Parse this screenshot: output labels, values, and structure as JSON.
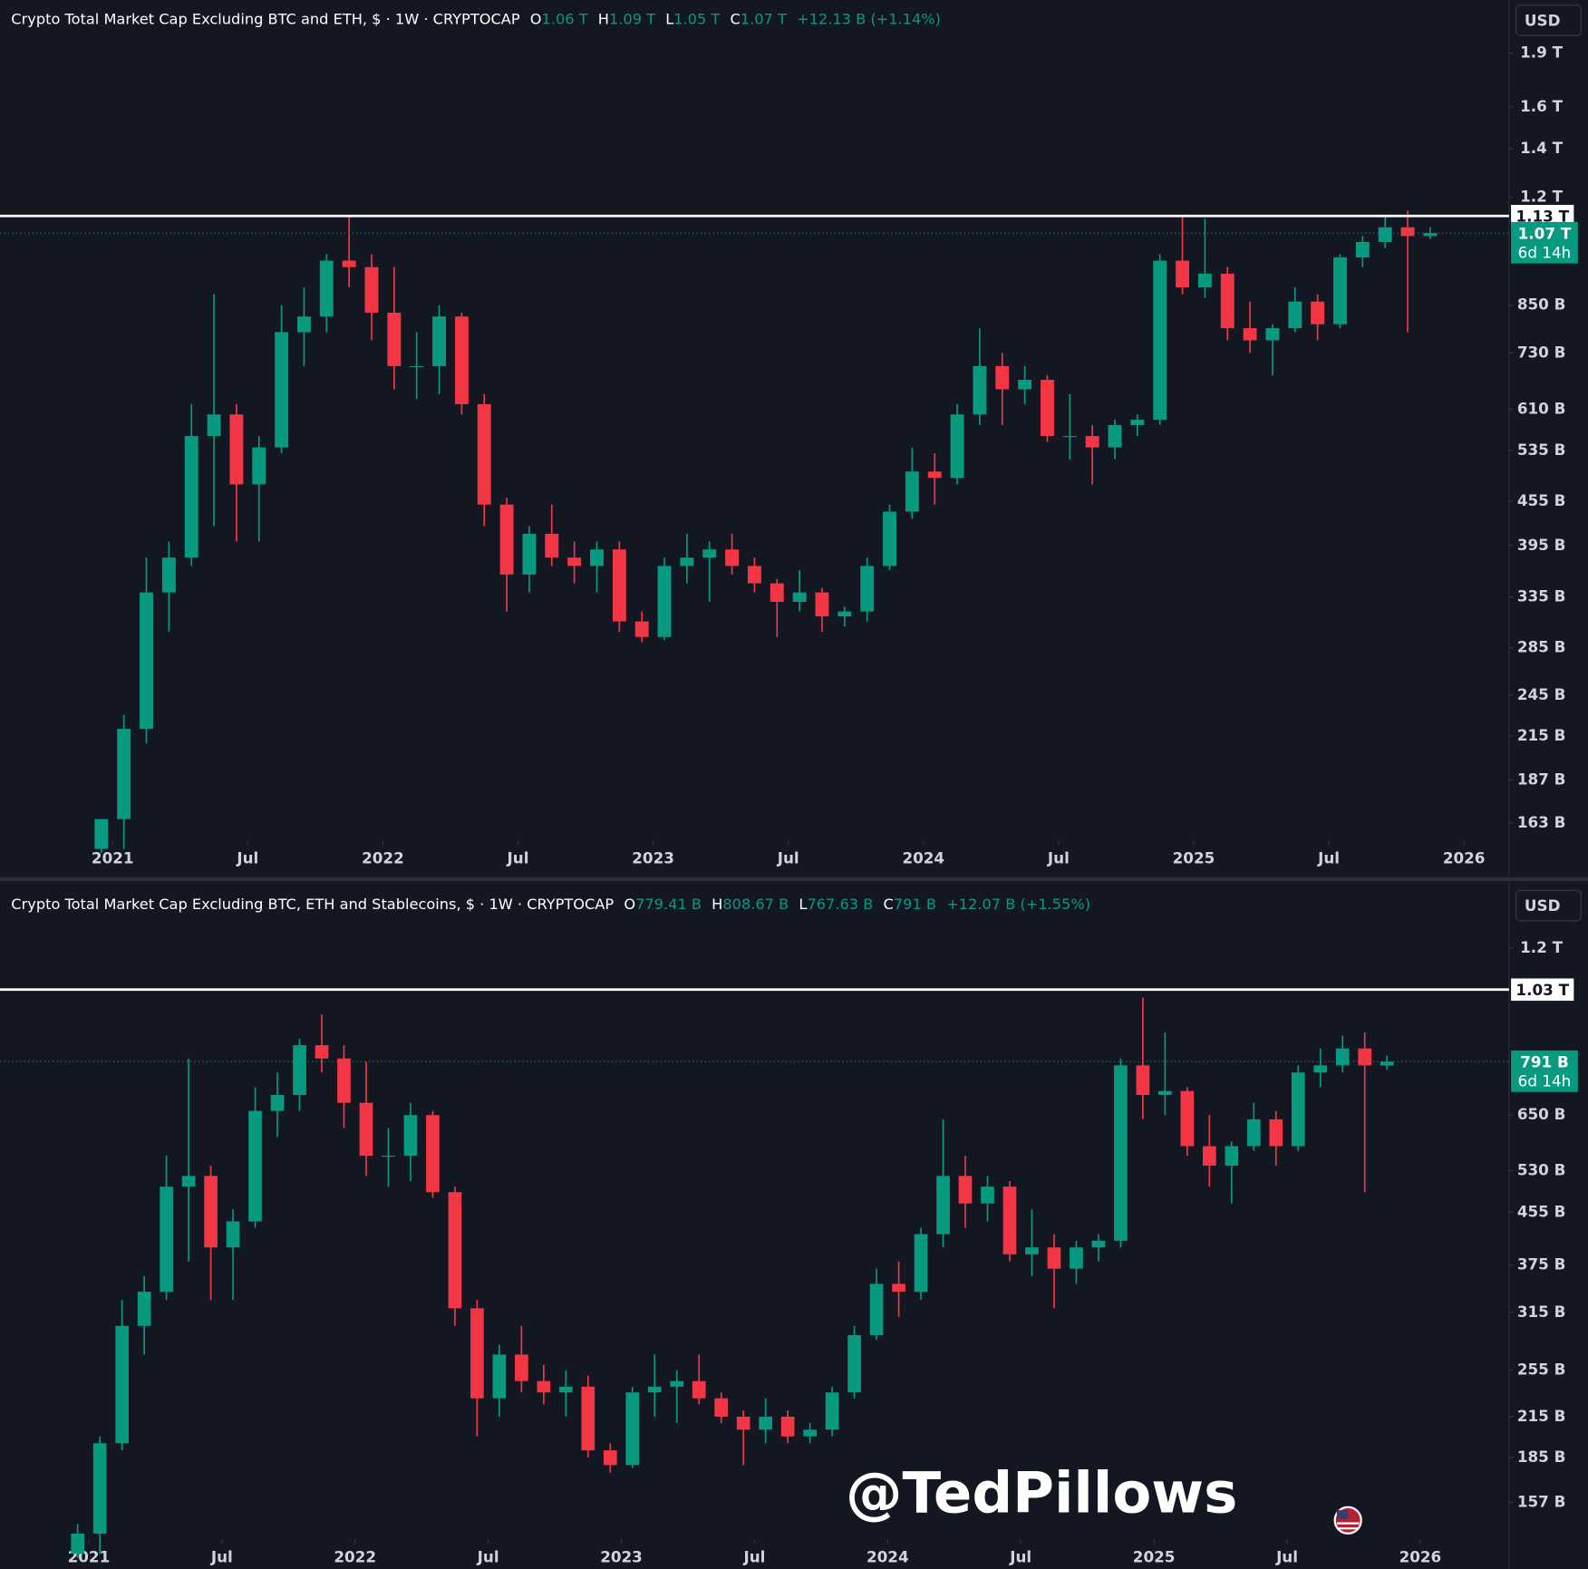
{
  "watermark": "@TedPillows",
  "chart_data": [
    {
      "type": "candlestick",
      "title": "Crypto Total Market Cap Excluding BTC and ETH, $ · 1W · CRYPTOCAP",
      "legend": [
        {
          "key": "O",
          "value": "1.06 T"
        },
        {
          "key": "H",
          "value": "1.09 T"
        },
        {
          "key": "L",
          "value": "1.05 T"
        },
        {
          "key": "C",
          "value": "1.07 T"
        }
      ],
      "change": "+12.13 B (+1.14%)",
      "currency": "USD",
      "hline": {
        "value": 1130,
        "label": "1.13 T"
      },
      "last_label": "1.07 T",
      "countdown": "6d 14h",
      "log_scale": true,
      "grid": false,
      "up_color": "#089981",
      "down_color": "#f23645",
      "xlim": [
        "2020-08",
        "2026-03"
      ],
      "xticks": [
        {
          "value": "2021-01",
          "label": "2021"
        },
        {
          "value": "2021-07",
          "label": "Jul"
        },
        {
          "value": "2022-01",
          "label": "2022"
        },
        {
          "value": "2022-07",
          "label": "Jul"
        },
        {
          "value": "2023-01",
          "label": "2023"
        },
        {
          "value": "2023-07",
          "label": "Jul"
        },
        {
          "value": "2024-01",
          "label": "2024"
        },
        {
          "value": "2024-07",
          "label": "Jul"
        },
        {
          "value": "2025-01",
          "label": "2025"
        },
        {
          "value": "2025-07",
          "label": "Jul"
        },
        {
          "value": "2026-01",
          "label": "2026"
        }
      ],
      "ylim": [
        154,
        2250
      ],
      "yticks": [
        {
          "value": 1900,
          "label": "1.9 T"
        },
        {
          "value": 1600,
          "label": "1.6 T"
        },
        {
          "value": 1400,
          "label": "1.4 T"
        },
        {
          "value": 1200,
          "label": "1.2 T"
        },
        {
          "value": 850,
          "label": "850 B"
        },
        {
          "value": 730,
          "label": "730 B"
        },
        {
          "value": 610,
          "label": "610 B"
        },
        {
          "value": 535,
          "label": "535 B"
        },
        {
          "value": 455,
          "label": "455 B"
        },
        {
          "value": 395,
          "label": "395 B"
        },
        {
          "value": 335,
          "label": "335 B"
        },
        {
          "value": 285,
          "label": "285 B"
        },
        {
          "value": 245,
          "label": "245 B"
        },
        {
          "value": 215,
          "label": "215 B"
        },
        {
          "value": 187,
          "label": "187 B"
        },
        {
          "value": 163,
          "label": "163 B"
        }
      ],
      "x": [
        "2020-12",
        "2021-01",
        "2021-02",
        "2021-03",
        "2021-04",
        "2021-05",
        "2021-06",
        "2021-07",
        "2021-08",
        "2021-09",
        "2021-10",
        "2021-11",
        "2021-12",
        "2022-01",
        "2022-02",
        "2022-03",
        "2022-04",
        "2022-05",
        "2022-06",
        "2022-07",
        "2022-08",
        "2022-09",
        "2022-10",
        "2022-11",
        "2022-12",
        "2023-01",
        "2023-02",
        "2023-03",
        "2023-04",
        "2023-05",
        "2023-06",
        "2023-07",
        "2023-08",
        "2023-09",
        "2023-10",
        "2023-11",
        "2023-12",
        "2024-01",
        "2024-02",
        "2024-03",
        "2024-04",
        "2024-05",
        "2024-06",
        "2024-07",
        "2024-08",
        "2024-09",
        "2024-10",
        "2024-11",
        "2024-12",
        "2025-01",
        "2025-02",
        "2025-03",
        "2025-04",
        "2025-05",
        "2025-06",
        "2025-07",
        "2025-08",
        "2025-09",
        "2025-10",
        "2025-11"
      ],
      "open": [
        150,
        165,
        220,
        340,
        380,
        560,
        600,
        480,
        540,
        780,
        820,
        980,
        960,
        830,
        700,
        700,
        820,
        620,
        450,
        360,
        410,
        380,
        370,
        390,
        310,
        295,
        370,
        380,
        390,
        370,
        350,
        330,
        340,
        315,
        320,
        370,
        440,
        500,
        490,
        600,
        700,
        650,
        670,
        560,
        560,
        540,
        580,
        590,
        980,
        900,
        940,
        790,
        760,
        790,
        860,
        800,
        990,
        1040,
        1090,
        1060
      ],
      "high": [
        165,
        230,
        380,
        400,
        620,
        880,
        620,
        560,
        850,
        900,
        1000,
        1130,
        1000,
        960,
        780,
        850,
        830,
        640,
        460,
        420,
        450,
        400,
        400,
        400,
        320,
        380,
        410,
        400,
        410,
        380,
        355,
        365,
        345,
        325,
        380,
        450,
        540,
        530,
        620,
        790,
        730,
        700,
        680,
        640,
        580,
        590,
        600,
        1000,
        1130,
        1120,
        960,
        860,
        800,
        900,
        880,
        1000,
        1060,
        1130,
        1150,
        1090
      ],
      "low": [
        148,
        150,
        210,
        300,
        370,
        420,
        400,
        400,
        530,
        700,
        780,
        900,
        760,
        650,
        630,
        640,
        600,
        420,
        320,
        340,
        370,
        350,
        340,
        300,
        290,
        292,
        350,
        330,
        360,
        340,
        295,
        320,
        300,
        305,
        310,
        365,
        430,
        450,
        480,
        580,
        580,
        620,
        550,
        520,
        480,
        520,
        560,
        580,
        880,
        870,
        760,
        730,
        680,
        780,
        760,
        790,
        960,
        1020,
        780,
        1050
      ],
      "close": [
        165,
        220,
        340,
        380,
        560,
        600,
        480,
        540,
        780,
        820,
        980,
        960,
        830,
        700,
        700,
        820,
        620,
        450,
        360,
        410,
        380,
        370,
        390,
        310,
        295,
        370,
        380,
        390,
        370,
        350,
        330,
        340,
        315,
        320,
        370,
        440,
        500,
        490,
        600,
        700,
        650,
        670,
        560,
        560,
        540,
        580,
        590,
        980,
        900,
        940,
        790,
        760,
        790,
        860,
        800,
        990,
        1040,
        1090,
        1060,
        1070
      ]
    },
    {
      "type": "candlestick",
      "title": "Crypto Total Market Cap Excluding BTC, ETH and Stablecoins, $ · 1W · CRYPTOCAP",
      "legend": [
        {
          "key": "O",
          "value": "779.41 B"
        },
        {
          "key": "H",
          "value": "808.67 B"
        },
        {
          "key": "L",
          "value": "767.63 B"
        },
        {
          "key": "C",
          "value": "791 B"
        }
      ],
      "change": "+12.07 B (+1.55%)",
      "currency": "USD",
      "hline": {
        "value": 1030,
        "label": "1.03 T"
      },
      "last_label": "791 B",
      "countdown": "6d 14h",
      "log_scale": true,
      "grid": false,
      "up_color": "#089981",
      "down_color": "#f23645",
      "xlim": [
        "2020-09",
        "2026-05"
      ],
      "xticks": [
        {
          "value": "2021-01",
          "label": "2021"
        },
        {
          "value": "2021-07",
          "label": "Jul"
        },
        {
          "value": "2022-01",
          "label": "2022"
        },
        {
          "value": "2022-07",
          "label": "Jul"
        },
        {
          "value": "2023-01",
          "label": "2023"
        },
        {
          "value": "2023-07",
          "label": "Jul"
        },
        {
          "value": "2024-01",
          "label": "2024"
        },
        {
          "value": "2024-07",
          "label": "Jul"
        },
        {
          "value": "2025-01",
          "label": "2025"
        },
        {
          "value": "2025-07",
          "label": "Jul"
        },
        {
          "value": "2026-01",
          "label": "2026"
        }
      ],
      "ylim": [
        137,
        1477
      ],
      "yticks": [
        {
          "value": 1200,
          "label": "1.2 T"
        },
        {
          "value": 650,
          "label": "650 B"
        },
        {
          "value": 530,
          "label": "530 B"
        },
        {
          "value": 455,
          "label": "455 B"
        },
        {
          "value": 375,
          "label": "375 B"
        },
        {
          "value": 315,
          "label": "315 B"
        },
        {
          "value": 255,
          "label": "255 B"
        },
        {
          "value": 215,
          "label": "215 B"
        },
        {
          "value": 185,
          "label": "185 B"
        },
        {
          "value": 157,
          "label": "157 B"
        }
      ],
      "x": [
        "2020-12",
        "2021-01",
        "2021-02",
        "2021-03",
        "2021-04",
        "2021-05",
        "2021-06",
        "2021-07",
        "2021-08",
        "2021-09",
        "2021-10",
        "2021-11",
        "2021-12",
        "2022-01",
        "2022-02",
        "2022-03",
        "2022-04",
        "2022-05",
        "2022-06",
        "2022-07",
        "2022-08",
        "2022-09",
        "2022-10",
        "2022-11",
        "2022-12",
        "2023-01",
        "2023-02",
        "2023-03",
        "2023-04",
        "2023-05",
        "2023-06",
        "2023-07",
        "2023-08",
        "2023-09",
        "2023-10",
        "2023-11",
        "2023-12",
        "2024-01",
        "2024-02",
        "2024-03",
        "2024-04",
        "2024-05",
        "2024-06",
        "2024-07",
        "2024-08",
        "2024-09",
        "2024-10",
        "2024-11",
        "2024-12",
        "2025-01",
        "2025-02",
        "2025-03",
        "2025-04",
        "2025-05",
        "2025-06",
        "2025-07",
        "2025-08",
        "2025-09",
        "2025-10",
        "2025-11"
      ],
      "open": [
        130,
        140,
        195,
        300,
        340,
        500,
        520,
        400,
        440,
        660,
        700,
        840,
        800,
        680,
        560,
        560,
        650,
        490,
        320,
        230,
        270,
        245,
        235,
        240,
        190,
        180,
        235,
        240,
        245,
        230,
        215,
        205,
        215,
        200,
        205,
        235,
        290,
        350,
        340,
        420,
        520,
        470,
        500,
        390,
        400,
        370,
        400,
        410,
        780,
        700,
        710,
        580,
        540,
        580,
        640,
        580,
        760,
        780,
        830,
        779.41
      ],
      "high": [
        145,
        200,
        330,
        360,
        560,
        800,
        540,
        460,
        720,
        760,
        860,
        940,
        840,
        790,
        620,
        680,
        660,
        500,
        330,
        280,
        300,
        260,
        255,
        250,
        195,
        240,
        270,
        255,
        270,
        235,
        220,
        230,
        220,
        210,
        240,
        300,
        370,
        380,
        430,
        640,
        560,
        520,
        510,
        460,
        420,
        410,
        420,
        800,
        1000,
        880,
        720,
        650,
        590,
        680,
        660,
        780,
        830,
        870,
        880,
        808.67
      ],
      "low": [
        128,
        130,
        190,
        270,
        330,
        380,
        330,
        330,
        430,
        600,
        660,
        760,
        620,
        520,
        500,
        510,
        480,
        300,
        200,
        215,
        235,
        225,
        215,
        185,
        175,
        178,
        215,
        210,
        225,
        210,
        180,
        195,
        195,
        195,
        200,
        230,
        285,
        310,
        330,
        400,
        430,
        440,
        380,
        360,
        320,
        350,
        380,
        400,
        640,
        650,
        560,
        500,
        470,
        570,
        540,
        570,
        720,
        760,
        490,
        767.63
      ],
      "close": [
        140,
        195,
        300,
        340,
        500,
        520,
        400,
        440,
        660,
        700,
        840,
        800,
        680,
        560,
        560,
        650,
        490,
        320,
        230,
        270,
        245,
        235,
        240,
        190,
        180,
        235,
        240,
        245,
        230,
        215,
        205,
        215,
        200,
        205,
        235,
        290,
        350,
        340,
        420,
        520,
        470,
        500,
        390,
        400,
        370,
        400,
        410,
        780,
        700,
        710,
        580,
        540,
        580,
        640,
        580,
        760,
        780,
        830,
        780,
        791
      ]
    }
  ]
}
